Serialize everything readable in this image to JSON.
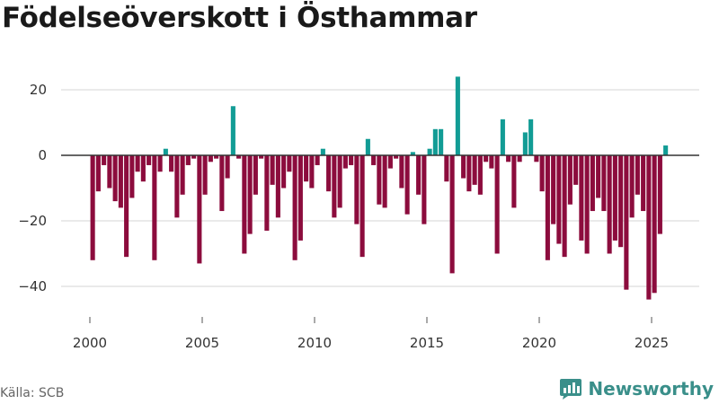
{
  "page": {
    "title": "Födelseöverskott i Östhammar",
    "source": "Källa: SCB",
    "brand": "Newsworthy"
  },
  "colors": {
    "positive": "#129c95",
    "negative": "#8c0c3d",
    "grid": "#dddddd",
    "zero_line": "#333333",
    "brand": "#3a8f8a"
  },
  "chart_data": {
    "type": "bar",
    "title": "Födelseöverskott i Östhammar",
    "xlabel": "",
    "ylabel": "",
    "frequency": "quarterly",
    "start": "2000 Q1",
    "end": "2025 Q3",
    "ylim": [
      -48,
      30
    ],
    "yticks": [
      -40,
      -20,
      0,
      20
    ],
    "xticks": [
      2000,
      2005,
      2010,
      2015,
      2020,
      2025
    ],
    "grid": true,
    "values": [
      -32,
      -11,
      -3,
      -10,
      -14,
      -16,
      -31,
      -13,
      -5,
      -8,
      -3,
      -32,
      -5,
      2,
      -5,
      -19,
      -12,
      -3,
      -1,
      -33,
      -12,
      -2,
      -1,
      -17,
      -7,
      15,
      -1,
      -30,
      -24,
      -12,
      -1,
      -23,
      -9,
      -19,
      -10,
      -5,
      -32,
      -26,
      -8,
      -10,
      -3,
      2,
      -11,
      -19,
      -16,
      -4,
      -3,
      -21,
      -31,
      5,
      -3,
      -15,
      -16,
      -4,
      -1,
      -10,
      -18,
      1,
      -12,
      -21,
      2,
      8,
      8,
      -8,
      -36,
      24,
      -7,
      -11,
      -9,
      -12,
      -2,
      -4,
      -30,
      11,
      -2,
      -16,
      -2,
      7,
      11,
      -2,
      -11,
      -32,
      -21,
      -27,
      -31,
      -15,
      -9,
      -26,
      -30,
      -17,
      -13,
      -17,
      -30,
      -26,
      -28,
      -41,
      -19,
      -12,
      -17,
      -44,
      -42,
      -24,
      3
    ]
  }
}
